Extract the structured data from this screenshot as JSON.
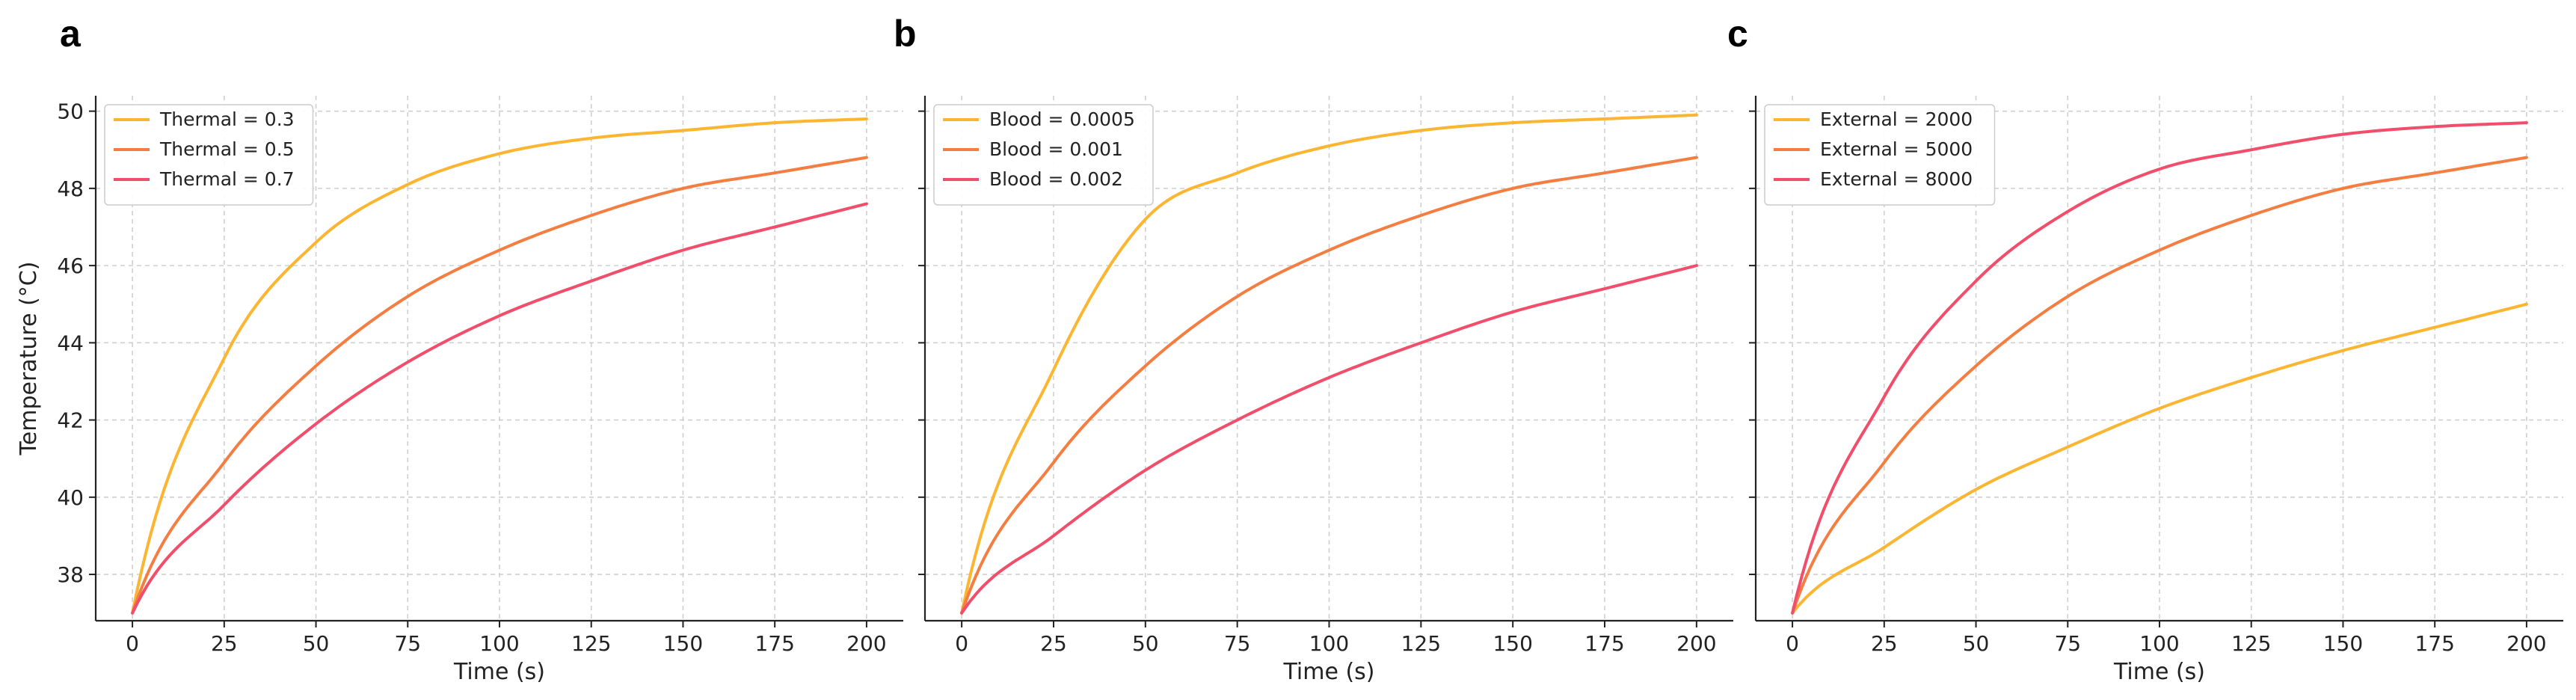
{
  "chart_data": [
    {
      "panel": "a",
      "type": "line",
      "xlabel": "Time (s)",
      "ylabel": "Temperature (°C)",
      "xlim": [
        -10,
        210
      ],
      "ylim": [
        36.8,
        50.4
      ],
      "xticks": [
        0,
        25,
        50,
        75,
        100,
        125,
        150,
        175,
        200
      ],
      "yticks": [
        38,
        40,
        42,
        44,
        46,
        48,
        50
      ],
      "grid": true,
      "legend_position": "top-left",
      "x": [
        0,
        25,
        50,
        75,
        100,
        125,
        150,
        175,
        200
      ],
      "series": [
        {
          "name": "Thermal = 0.3",
          "color": "#FBB531",
          "values": [
            37.0,
            43.6,
            46.6,
            48.1,
            48.9,
            49.3,
            49.5,
            49.7,
            49.8
          ]
        },
        {
          "name": "Thermal = 0.5",
          "color": "#F47E41",
          "values": [
            37.0,
            40.9,
            43.4,
            45.2,
            46.4,
            47.3,
            48.0,
            48.4,
            48.8
          ]
        },
        {
          "name": "Thermal = 0.7",
          "color": "#F04E6B",
          "values": [
            37.0,
            39.8,
            41.9,
            43.5,
            44.7,
            45.6,
            46.4,
            47.0,
            47.6
          ]
        }
      ]
    },
    {
      "panel": "b",
      "type": "line",
      "xlabel": "Time (s)",
      "ylabel": "",
      "xlim": [
        -10,
        210
      ],
      "ylim": [
        36.8,
        50.4
      ],
      "xticks": [
        0,
        25,
        50,
        75,
        100,
        125,
        150,
        175,
        200
      ],
      "yticks": [
        38,
        40,
        42,
        44,
        46,
        48,
        50
      ],
      "grid": true,
      "legend_position": "top-left",
      "x": [
        0,
        25,
        50,
        75,
        100,
        125,
        150,
        175,
        200
      ],
      "series": [
        {
          "name": "Blood = 0.0005",
          "color": "#FBB531",
          "values": [
            37.0,
            43.3,
            47.2,
            48.4,
            49.1,
            49.5,
            49.7,
            49.8,
            49.9
          ]
        },
        {
          "name": "Blood = 0.001",
          "color": "#F47E41",
          "values": [
            37.0,
            40.9,
            43.4,
            45.2,
            46.4,
            47.3,
            48.0,
            48.4,
            48.8
          ]
        },
        {
          "name": "Blood = 0.002",
          "color": "#F04E6B",
          "values": [
            37.0,
            39.0,
            40.7,
            42.0,
            43.1,
            44.0,
            44.8,
            45.4,
            46.0
          ]
        }
      ]
    },
    {
      "panel": "c",
      "type": "line",
      "xlabel": "Time (s)",
      "ylabel": "",
      "xlim": [
        -10,
        210
      ],
      "ylim": [
        36.8,
        50.4
      ],
      "xticks": [
        0,
        25,
        50,
        75,
        100,
        125,
        150,
        175,
        200
      ],
      "yticks": [
        38,
        40,
        42,
        44,
        46,
        48,
        50
      ],
      "grid": true,
      "legend_position": "top-left",
      "x": [
        0,
        25,
        50,
        75,
        100,
        125,
        150,
        175,
        200
      ],
      "series": [
        {
          "name": "External = 2000",
          "color": "#FBB531",
          "values": [
            37.0,
            38.7,
            40.2,
            41.3,
            42.3,
            43.1,
            43.8,
            44.4,
            45.0
          ]
        },
        {
          "name": "External = 5000",
          "color": "#F47E41",
          "values": [
            37.0,
            40.9,
            43.4,
            45.2,
            46.4,
            47.3,
            48.0,
            48.4,
            48.8
          ]
        },
        {
          "name": "External = 8000",
          "color": "#F04E6B",
          "values": [
            37.0,
            42.6,
            45.6,
            47.4,
            48.5,
            49.0,
            49.4,
            49.6,
            49.7
          ]
        }
      ]
    }
  ]
}
